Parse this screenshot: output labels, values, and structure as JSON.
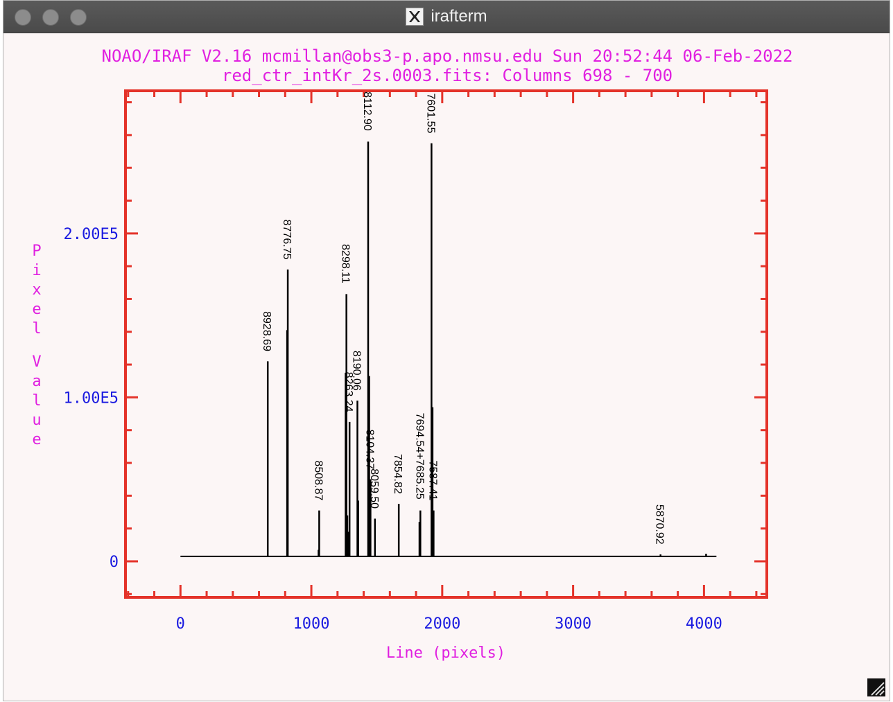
{
  "window": {
    "title": "irafterm",
    "icon": "x11-logo-icon",
    "buttons": [
      "close",
      "minimize",
      "zoom"
    ]
  },
  "colors": {
    "frame": "#e4332a",
    "header_text": "#e020e0",
    "tick_labels": "#1a1ae0",
    "data": "#000000",
    "background": "#fcf6f6"
  },
  "chart_data": {
    "type": "line",
    "title": "NOAO/IRAF V2.16 mcmillan@obs3-p.apo.nmsu.edu Sun 20:52:44 06-Feb-2022",
    "subtitle": "red_ctr_intKr_2s.0003.fits: Columns 698 - 700",
    "xlabel": "Line (pixels)",
    "ylabel": "Pixel Value",
    "xlim": [
      -420,
      4480
    ],
    "ylim": [
      -22000,
      287000
    ],
    "x_ticks": [
      0,
      1000,
      2000,
      3000,
      4000
    ],
    "x_tick_labels": [
      "0",
      "1000",
      "2000",
      "3000",
      "4000"
    ],
    "y_ticks": [
      0,
      100000,
      200000
    ],
    "y_tick_labels": [
      "0",
      "1.00E5",
      "2.00E5"
    ],
    "baseline": 3000,
    "x_start": 0,
    "x_end": 4095,
    "peaks": [
      {
        "x": 667,
        "y": 122000
      },
      {
        "x": 815,
        "y": 141000
      },
      {
        "x": 820,
        "y": 178000
      },
      {
        "x": 1055,
        "y": 7000
      },
      {
        "x": 1060,
        "y": 31000
      },
      {
        "x": 1262,
        "y": 115000
      },
      {
        "x": 1268,
        "y": 163000
      },
      {
        "x": 1275,
        "y": 28000
      },
      {
        "x": 1283,
        "y": 18000
      },
      {
        "x": 1292,
        "y": 85000
      },
      {
        "x": 1352,
        "y": 98000
      },
      {
        "x": 1358,
        "y": 37000
      },
      {
        "x": 1434,
        "y": 256000
      },
      {
        "x": 1442,
        "y": 113000
      },
      {
        "x": 1452,
        "y": 50000
      },
      {
        "x": 1486,
        "y": 26000
      },
      {
        "x": 1668,
        "y": 35000
      },
      {
        "x": 1826,
        "y": 24000
      },
      {
        "x": 1833,
        "y": 31000
      },
      {
        "x": 1918,
        "y": 255000
      },
      {
        "x": 1926,
        "y": 94000
      },
      {
        "x": 1934,
        "y": 31000
      },
      {
        "x": 3668,
        "y": 4200
      },
      {
        "x": 4016,
        "y": 4600
      }
    ],
    "line_labels": [
      {
        "text": "8928.69",
        "x": 667
      },
      {
        "text": "8776.75",
        "x": 820
      },
      {
        "text": "8508.87",
        "x": 1060
      },
      {
        "text": "8298.11",
        "x": 1268
      },
      {
        "text": "8263.24",
        "x": 1292
      },
      {
        "text": "8190.06",
        "x": 1352
      },
      {
        "text": "8112.90",
        "x": 1434
      },
      {
        "text": "8104.37",
        "x": 1452
      },
      {
        "text": "8059.50",
        "x": 1486
      },
      {
        "text": "7854.82",
        "x": 1668
      },
      {
        "text": "7694.54+7685.25",
        "x": 1833
      },
      {
        "text": "7601.55",
        "x": 1918
      },
      {
        "text": "7587.41",
        "x": 1934
      },
      {
        "text": "5870.92",
        "x": 3668
      }
    ]
  }
}
